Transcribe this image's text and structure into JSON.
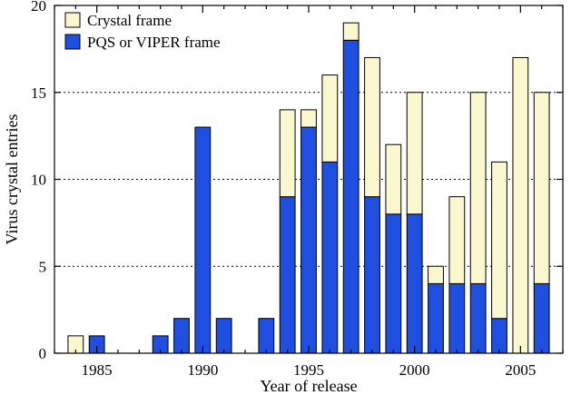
{
  "chart_data": {
    "type": "bar",
    "stacked": true,
    "xlabel": "Year of release",
    "ylabel": "Virus crystal entries",
    "ylim": [
      0,
      20
    ],
    "yticks": [
      0,
      5,
      10,
      15,
      20
    ],
    "xticks": [
      1985,
      1990,
      1995,
      2000,
      2005
    ],
    "xlim": [
      1983,
      2007
    ],
    "grid": {
      "y": true,
      "style": "dotted",
      "at": [
        5,
        10,
        15
      ]
    },
    "legend": {
      "position": "top-left"
    },
    "x": [
      1984,
      1985,
      1988,
      1989,
      1990,
      1991,
      1993,
      1994,
      1995,
      1996,
      1997,
      1998,
      1999,
      2000,
      2001,
      2002,
      2003,
      2004,
      2005,
      2006
    ],
    "series": [
      {
        "name": "PQS or VIPER frame",
        "color": "#1f4fe0",
        "values": [
          0,
          1,
          1,
          2,
          13,
          2,
          2,
          9,
          13,
          11,
          18,
          9,
          8,
          8,
          4,
          4,
          4,
          2,
          0,
          4
        ]
      },
      {
        "name": "Crystal frame",
        "color": "#fbf8d0",
        "values": [
          1,
          0,
          0,
          0,
          0,
          0,
          0,
          5,
          1,
          5,
          1,
          8,
          4,
          7,
          1,
          5,
          11,
          9,
          17,
          11
        ]
      }
    ]
  }
}
